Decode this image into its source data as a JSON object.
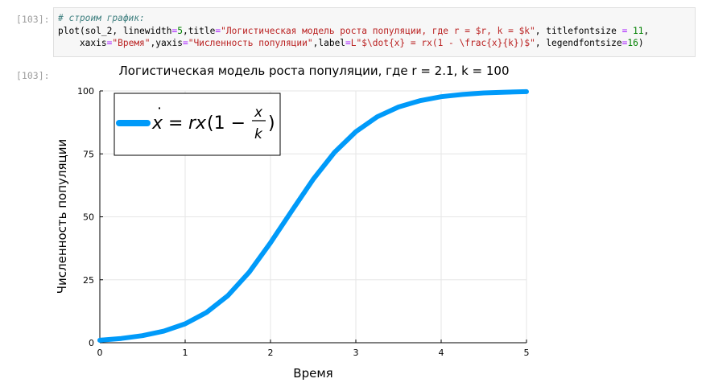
{
  "cell": {
    "input_prompt": "[103]:",
    "output_prompt": "[103]:",
    "code": {
      "comment": "# строим график:",
      "line1": {
        "call": "plot(sol_2, linewidth",
        "eq1": "=",
        "lw": "5",
        "title_key": ",title",
        "eq2": "=",
        "title_str": "\"Логистическая модель роста популяции, где r = $r, k = $k\"",
        "tfs_key": ", titlefontsize ",
        "eq3": "=",
        "tfs": " 11",
        "tail": ","
      },
      "line2": {
        "indent": "    xaxis",
        "eq1": "=",
        "xaxis_str": "\"Время\"",
        "yaxis_key": ",yaxis",
        "eq2": "=",
        "yaxis_str": "\"Численность популяции\"",
        "label_key": ",label",
        "eq3": "=",
        "label_str": "L\"$\\dot{x} = rx(1 - \\frac{x}{k})$\"",
        "lfs_key": ", legendfontsize",
        "eq4": "=",
        "lfs": "16",
        "close": ")"
      }
    }
  },
  "chart_data": {
    "type": "line",
    "title": "Логистическая модель роста популяции, где r = 2.1, k = 100",
    "xlabel": "Время",
    "ylabel": "Численность популяции",
    "xlim": [
      0,
      5
    ],
    "ylim": [
      0,
      100
    ],
    "xticks": [
      "0",
      "1",
      "2",
      "3",
      "4",
      "5"
    ],
    "yticks": [
      "0",
      "25",
      "50",
      "75",
      "100"
    ],
    "grid": true,
    "legend_position": "top-left",
    "series": [
      {
        "color": "#009af9",
        "x": [
          0,
          0.25,
          0.5,
          0.75,
          1,
          1.25,
          1.5,
          1.75,
          2,
          2.25,
          2.5,
          2.75,
          3,
          3.25,
          3.5,
          3.75,
          4,
          4.25,
          4.5,
          4.75,
          5
        ],
        "y": [
          1,
          1.7,
          2.8,
          4.6,
          7.5,
          12,
          18.7,
          28,
          39.7,
          52.4,
          64.9,
          75.6,
          83.8,
          89.7,
          93.6,
          96.1,
          97.7,
          98.6,
          99.2,
          99.5,
          99.7
        ]
      }
    ],
    "legend_formula": {
      "lhs": "x",
      "dot": "˙",
      "eq": "=",
      "rx": "rx",
      "open": "(1 −",
      "num": "x",
      "den": "k",
      "close": ")"
    }
  }
}
